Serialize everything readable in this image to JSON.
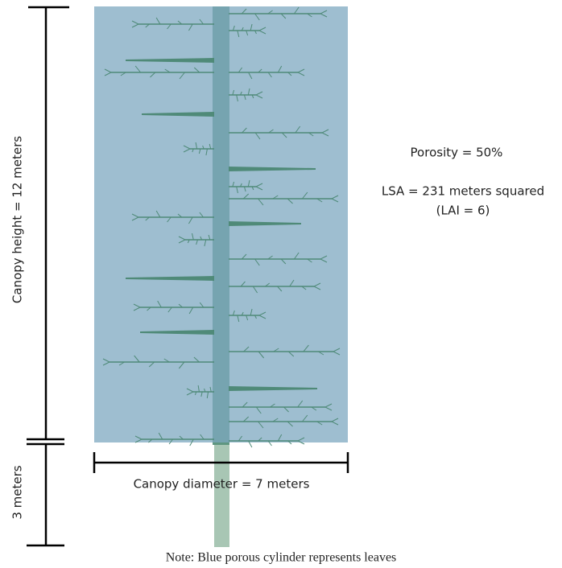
{
  "labels": {
    "canopy_height": "Canopy height = 12 meters",
    "trunk_height": "3 meters",
    "canopy_diameter": "Canopy diameter = 7 meters",
    "porosity": "Porosity = 50%",
    "lsa": "LSA = 231 meters squared",
    "lai": "(LAI = 6)"
  },
  "note": "Note: Blue porous cylinder represents leaves"
}
